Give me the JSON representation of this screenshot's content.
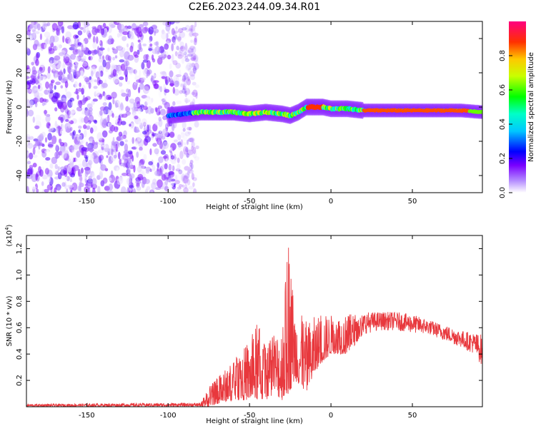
{
  "title": "C2E6.2023.244.09.34.R01",
  "chart_data": [
    {
      "type": "heatmap",
      "panel": "spectrogram",
      "xlabel": "Height of straight line (km)",
      "ylabel": "Frequency (Hz)",
      "xlim": [
        -187,
        93
      ],
      "ylim": [
        -50,
        50
      ],
      "x_ticks": [
        -150,
        -100,
        -50,
        0,
        50
      ],
      "y_ticks": [
        -40,
        -20,
        0,
        20,
        40
      ],
      "noise_region_x": [
        -187,
        -82
      ],
      "ridge": [
        {
          "x": -100,
          "y": -5
        },
        {
          "x": -90,
          "y": -4
        },
        {
          "x": -80,
          "y": -3
        },
        {
          "x": -70,
          "y": -3
        },
        {
          "x": -60,
          "y": -3
        },
        {
          "x": -50,
          "y": -4
        },
        {
          "x": -40,
          "y": -3
        },
        {
          "x": -30,
          "y": -4
        },
        {
          "x": -25,
          "y": -5
        },
        {
          "x": -20,
          "y": -3
        },
        {
          "x": -15,
          "y": 0
        },
        {
          "x": -5,
          "y": 0
        },
        {
          "x": 0,
          "y": -1
        },
        {
          "x": 10,
          "y": -1
        },
        {
          "x": 20,
          "y": -2
        },
        {
          "x": 40,
          "y": -2
        },
        {
          "x": 60,
          "y": -2
        },
        {
          "x": 80,
          "y": -2
        },
        {
          "x": 93,
          "y": -3
        }
      ],
      "colorbar": {
        "label": "Normalized spectral amplitude",
        "range": [
          0,
          1
        ],
        "ticks": [
          0.0,
          0.2,
          0.4,
          0.6,
          0.8
        ],
        "tick_labels": [
          "0.0",
          "0.2",
          "0.4",
          "0.6",
          "0.8"
        ]
      }
    },
    {
      "type": "line",
      "panel": "snr",
      "xlabel": "Height of straight line (km)",
      "ylabel": "SNR (10 * v/v)",
      "y_multiplier_label": "(x10",
      "y_multiplier_exp": "4",
      "y_multiplier_close": ")",
      "xlim": [
        -187,
        93
      ],
      "ylim": [
        0,
        1.3
      ],
      "x_ticks": [
        -150,
        -100,
        -50,
        0,
        50
      ],
      "y_ticks": [
        0.2,
        0.4,
        0.6,
        0.8,
        1.0,
        1.2
      ],
      "y_tick_labels": [
        "0.2",
        "0.4",
        "0.6",
        "0.8",
        "1.0",
        "1.2"
      ],
      "series": [
        {
          "color": "#e8383d",
          "envelope": [
            {
              "x": -187,
              "lo": 0.0,
              "hi": 0.02
            },
            {
              "x": -80,
              "lo": 0.0,
              "hi": 0.03
            },
            {
              "x": -75,
              "lo": 0.0,
              "hi": 0.15
            },
            {
              "x": -70,
              "lo": 0.02,
              "hi": 0.22
            },
            {
              "x": -60,
              "lo": 0.05,
              "hi": 0.35
            },
            {
              "x": -50,
              "lo": 0.05,
              "hi": 0.5
            },
            {
              "x": -45,
              "lo": 0.05,
              "hi": 0.65
            },
            {
              "x": -40,
              "lo": 0.05,
              "hi": 0.45
            },
            {
              "x": -35,
              "lo": 0.1,
              "hi": 0.55
            },
            {
              "x": -30,
              "lo": 0.05,
              "hi": 0.65
            },
            {
              "x": -26,
              "lo": 0.1,
              "hi": 1.28
            },
            {
              "x": -22,
              "lo": 0.2,
              "hi": 0.75
            },
            {
              "x": -15,
              "lo": 0.1,
              "hi": 0.65
            },
            {
              "x": -8,
              "lo": 0.3,
              "hi": 0.7
            },
            {
              "x": 0,
              "lo": 0.4,
              "hi": 0.7
            },
            {
              "x": 10,
              "lo": 0.4,
              "hi": 0.7
            },
            {
              "x": 20,
              "lo": 0.55,
              "hi": 0.72
            },
            {
              "x": 30,
              "lo": 0.58,
              "hi": 0.72
            },
            {
              "x": 40,
              "lo": 0.58,
              "hi": 0.72
            },
            {
              "x": 50,
              "lo": 0.56,
              "hi": 0.7
            },
            {
              "x": 60,
              "lo": 0.55,
              "hi": 0.66
            },
            {
              "x": 70,
              "lo": 0.5,
              "hi": 0.62
            },
            {
              "x": 80,
              "lo": 0.45,
              "hi": 0.58
            },
            {
              "x": 88,
              "lo": 0.4,
              "hi": 0.56
            },
            {
              "x": 93,
              "lo": 0.3,
              "hi": 0.55
            }
          ]
        }
      ]
    }
  ]
}
